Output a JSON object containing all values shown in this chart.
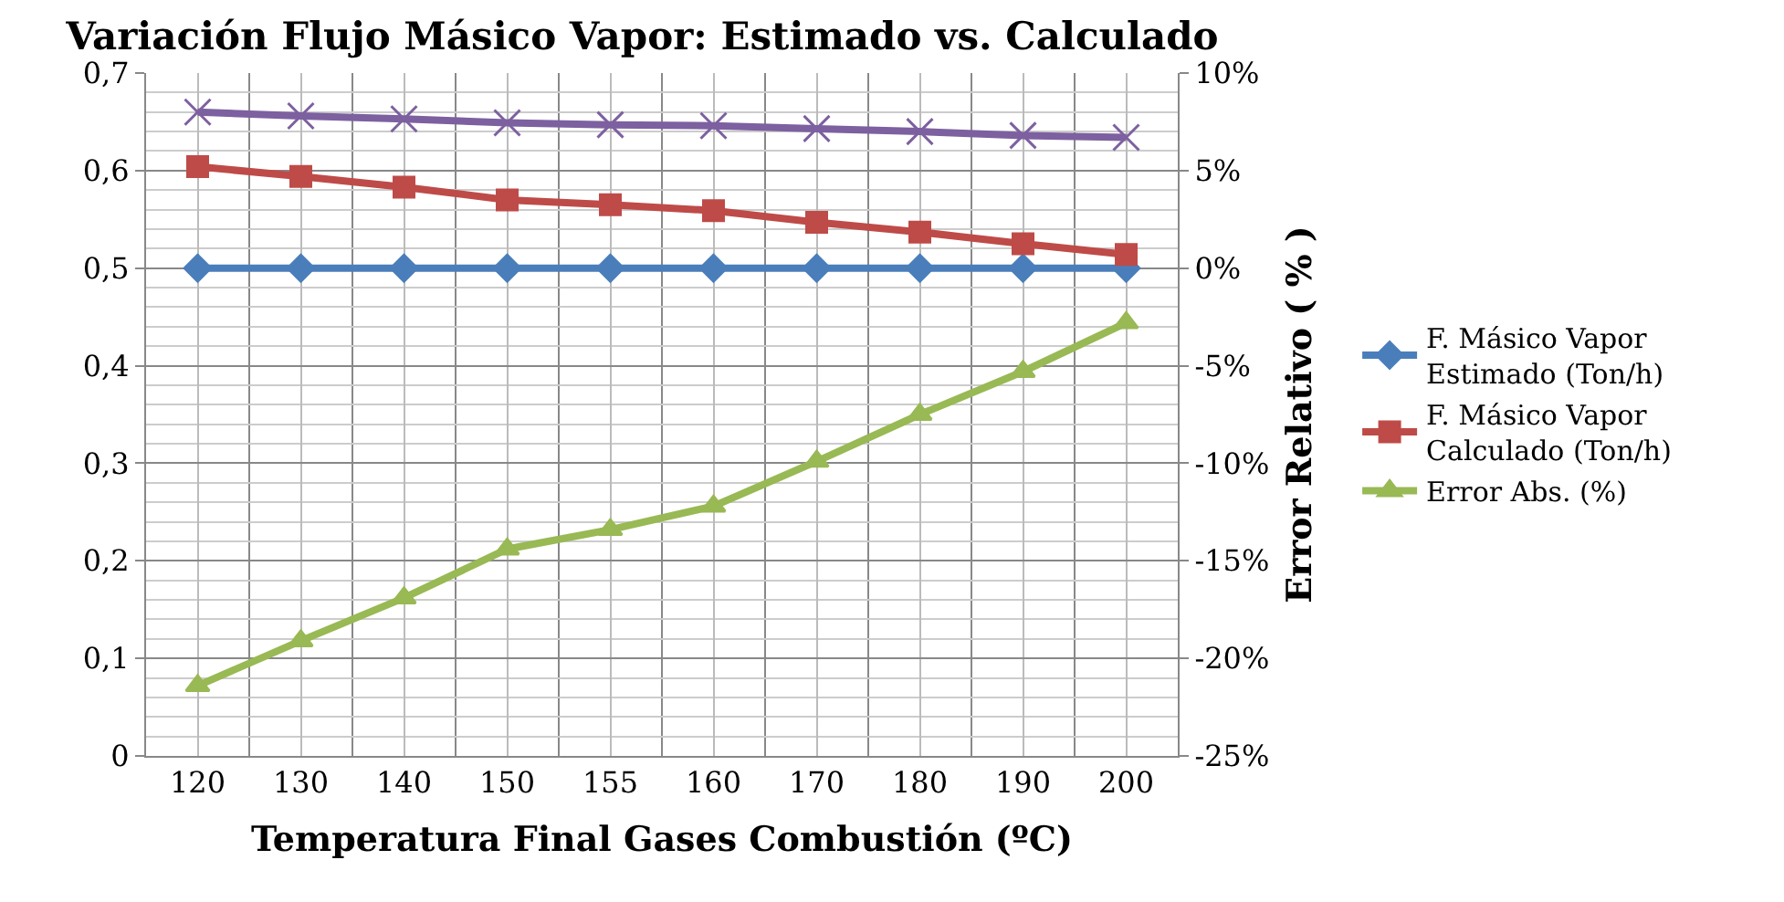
{
  "chart_data": {
    "type": "line",
    "title": "Variación Flujo Másico Vapor: Estimado vs. Calculado",
    "xlabel": "Temperatura Final Gases Combustión (ºC)",
    "y2label": "Error Relativo ( % )",
    "categories": [
      "120",
      "130",
      "140",
      "150",
      "155",
      "160",
      "170",
      "180",
      "190",
      "200"
    ],
    "series": [
      {
        "name": "F. Másico Vapor Estimado (Ton/h)",
        "color": "#4a7ebb",
        "marker": "diamond",
        "values": [
          0.5,
          0.5,
          0.5,
          0.5,
          0.5,
          0.5,
          0.5,
          0.5,
          0.5,
          0.5
        ]
      },
      {
        "name": "F. Másico Vapor Calculado (Ton/h)",
        "color": "#be4b48",
        "marker": "square",
        "values": [
          0.604,
          0.594,
          0.583,
          0.57,
          0.565,
          0.559,
          0.547,
          0.537,
          0.525,
          0.514
        ]
      },
      {
        "name": "Error Abs. (%)",
        "color": "#98b954",
        "marker": "triangle",
        "axis": "y2",
        "values": [
          -21.4,
          -19.1,
          -16.9,
          -14.4,
          -13.4,
          -12.2,
          -9.9,
          -7.5,
          -5.3,
          -2.8
        ]
      },
      {
        "color": "#7d60a0",
        "marker": "cross",
        "values": [
          0.66,
          0.656,
          0.653,
          0.649,
          0.647,
          0.646,
          0.643,
          0.64,
          0.636,
          0.634
        ]
      }
    ],
    "ylim": [
      0,
      0.7
    ],
    "yticks": [
      {
        "value": 0,
        "label": "0"
      },
      {
        "value": 0.1,
        "label": "0,1"
      },
      {
        "value": 0.2,
        "label": "0,2"
      },
      {
        "value": 0.3,
        "label": "0,3"
      },
      {
        "value": 0.4,
        "label": "0,4"
      },
      {
        "value": 0.5,
        "label": "0,5"
      },
      {
        "value": 0.6,
        "label": "0,6"
      },
      {
        "value": 0.7,
        "label": "0,7"
      }
    ],
    "y2lim": [
      -25,
      10
    ],
    "y2ticks": [
      {
        "value": -25,
        "label": "-25%"
      },
      {
        "value": -20,
        "label": "-20%"
      },
      {
        "value": -15,
        "label": "-15%"
      },
      {
        "value": -10,
        "label": "-10%"
      },
      {
        "value": -5,
        "label": "-5%"
      },
      {
        "value": 0,
        "label": "0%"
      },
      {
        "value": 5,
        "label": "5%"
      },
      {
        "value": 10,
        "label": "10%"
      }
    ],
    "grid": true,
    "legend": "right",
    "line_style": "solid"
  }
}
